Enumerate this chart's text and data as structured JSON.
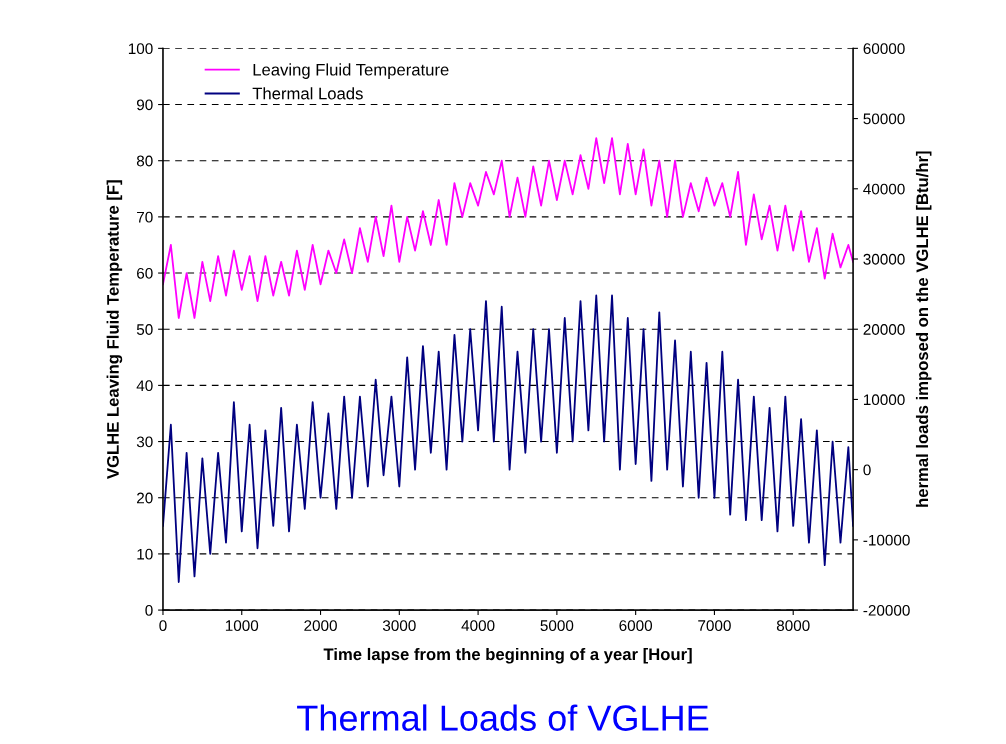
{
  "chart_data": {
    "type": "line",
    "title": "Thermal Loads of VGLHE",
    "xlabel": "Time lapse from the beginning of a year [Hour]",
    "ylabel": "VGLHE Leaving Fluid Temperature [F]",
    "y2label": "hermal loads imposed on the VGLHE [Btu/hr]",
    "x": [
      0,
      100,
      200,
      300,
      400,
      500,
      600,
      700,
      800,
      900,
      1000,
      1100,
      1200,
      1300,
      1400,
      1500,
      1600,
      1700,
      1800,
      1900,
      2000,
      2100,
      2200,
      2300,
      2400,
      2500,
      2600,
      2700,
      2800,
      2900,
      3000,
      3100,
      3200,
      3300,
      3400,
      3500,
      3600,
      3700,
      3800,
      3900,
      4000,
      4100,
      4200,
      4300,
      4400,
      4500,
      4600,
      4700,
      4800,
      4900,
      5000,
      5100,
      5200,
      5300,
      5400,
      5500,
      5600,
      5700,
      5800,
      5900,
      6000,
      6100,
      6200,
      6300,
      6400,
      6500,
      6600,
      6700,
      6800,
      6900,
      7000,
      7100,
      7200,
      7300,
      7400,
      7500,
      7600,
      7700,
      7800,
      7900,
      8000,
      8100,
      8200,
      8300,
      8400,
      8500,
      8600,
      8700,
      8760
    ],
    "series": [
      {
        "name": "Leaving Fluid Temperature",
        "color": "#ff00ff",
        "values": [
          58,
          65,
          52,
          60,
          52,
          62,
          55,
          63,
          56,
          64,
          57,
          63,
          55,
          63,
          56,
          62,
          56,
          64,
          57,
          65,
          58,
          64,
          60,
          66,
          60,
          68,
          62,
          70,
          63,
          72,
          62,
          70,
          64,
          71,
          65,
          73,
          65,
          76,
          70,
          76,
          72,
          78,
          74,
          80,
          70,
          77,
          70,
          79,
          72,
          80,
          73,
          80,
          74,
          81,
          75,
          84,
          76,
          84,
          74,
          83,
          74,
          82,
          72,
          80,
          70,
          80,
          70,
          76,
          71,
          77,
          72,
          76,
          70,
          78,
          65,
          74,
          66,
          72,
          64,
          72,
          64,
          71,
          62,
          68,
          59,
          67,
          61,
          65,
          62
        ]
      },
      {
        "name": "Thermal Loads",
        "color": "#000080",
        "axis": "y2",
        "values": [
          -8000,
          6400,
          -16000,
          2400,
          -15200,
          1600,
          -12000,
          2400,
          -10400,
          9600,
          -8800,
          6400,
          -11200,
          5600,
          -8000,
          8800,
          -8800,
          6400,
          -5600,
          9600,
          -4000,
          8000,
          -5600,
          10400,
          -4000,
          10400,
          -2400,
          12800,
          -800,
          10400,
          -2400,
          16000,
          0,
          17600,
          2400,
          16800,
          0,
          19200,
          4000,
          20000,
          5600,
          24000,
          4000,
          23200,
          0,
          16800,
          2400,
          20000,
          4000,
          20000,
          2400,
          21600,
          4000,
          24000,
          5600,
          24800,
          4000,
          24800,
          0,
          21600,
          800,
          20000,
          -1600,
          22400,
          0,
          18400,
          -2400,
          16800,
          -4000,
          15200,
          -4000,
          16800,
          -6400,
          12800,
          -7200,
          10400,
          -7200,
          8800,
          -8800,
          10400,
          -8000,
          7200,
          -10400,
          5600,
          -13600,
          4000,
          -10400,
          3200,
          -8000
        ]
      }
    ],
    "xlim": [
      0,
      8760
    ],
    "xticks": [
      0,
      1000,
      2000,
      3000,
      4000,
      5000,
      6000,
      7000,
      8000
    ],
    "ylim": [
      0,
      100
    ],
    "yticks": [
      0,
      10,
      20,
      30,
      40,
      50,
      60,
      70,
      80,
      90,
      100
    ],
    "y2lim": [
      -20000,
      60000
    ],
    "y2ticks": [
      -20000,
      -10000,
      0,
      10000,
      20000,
      30000,
      40000,
      50000,
      60000
    ],
    "grid": "y",
    "legend": "top left",
    "line_style": "solid"
  }
}
